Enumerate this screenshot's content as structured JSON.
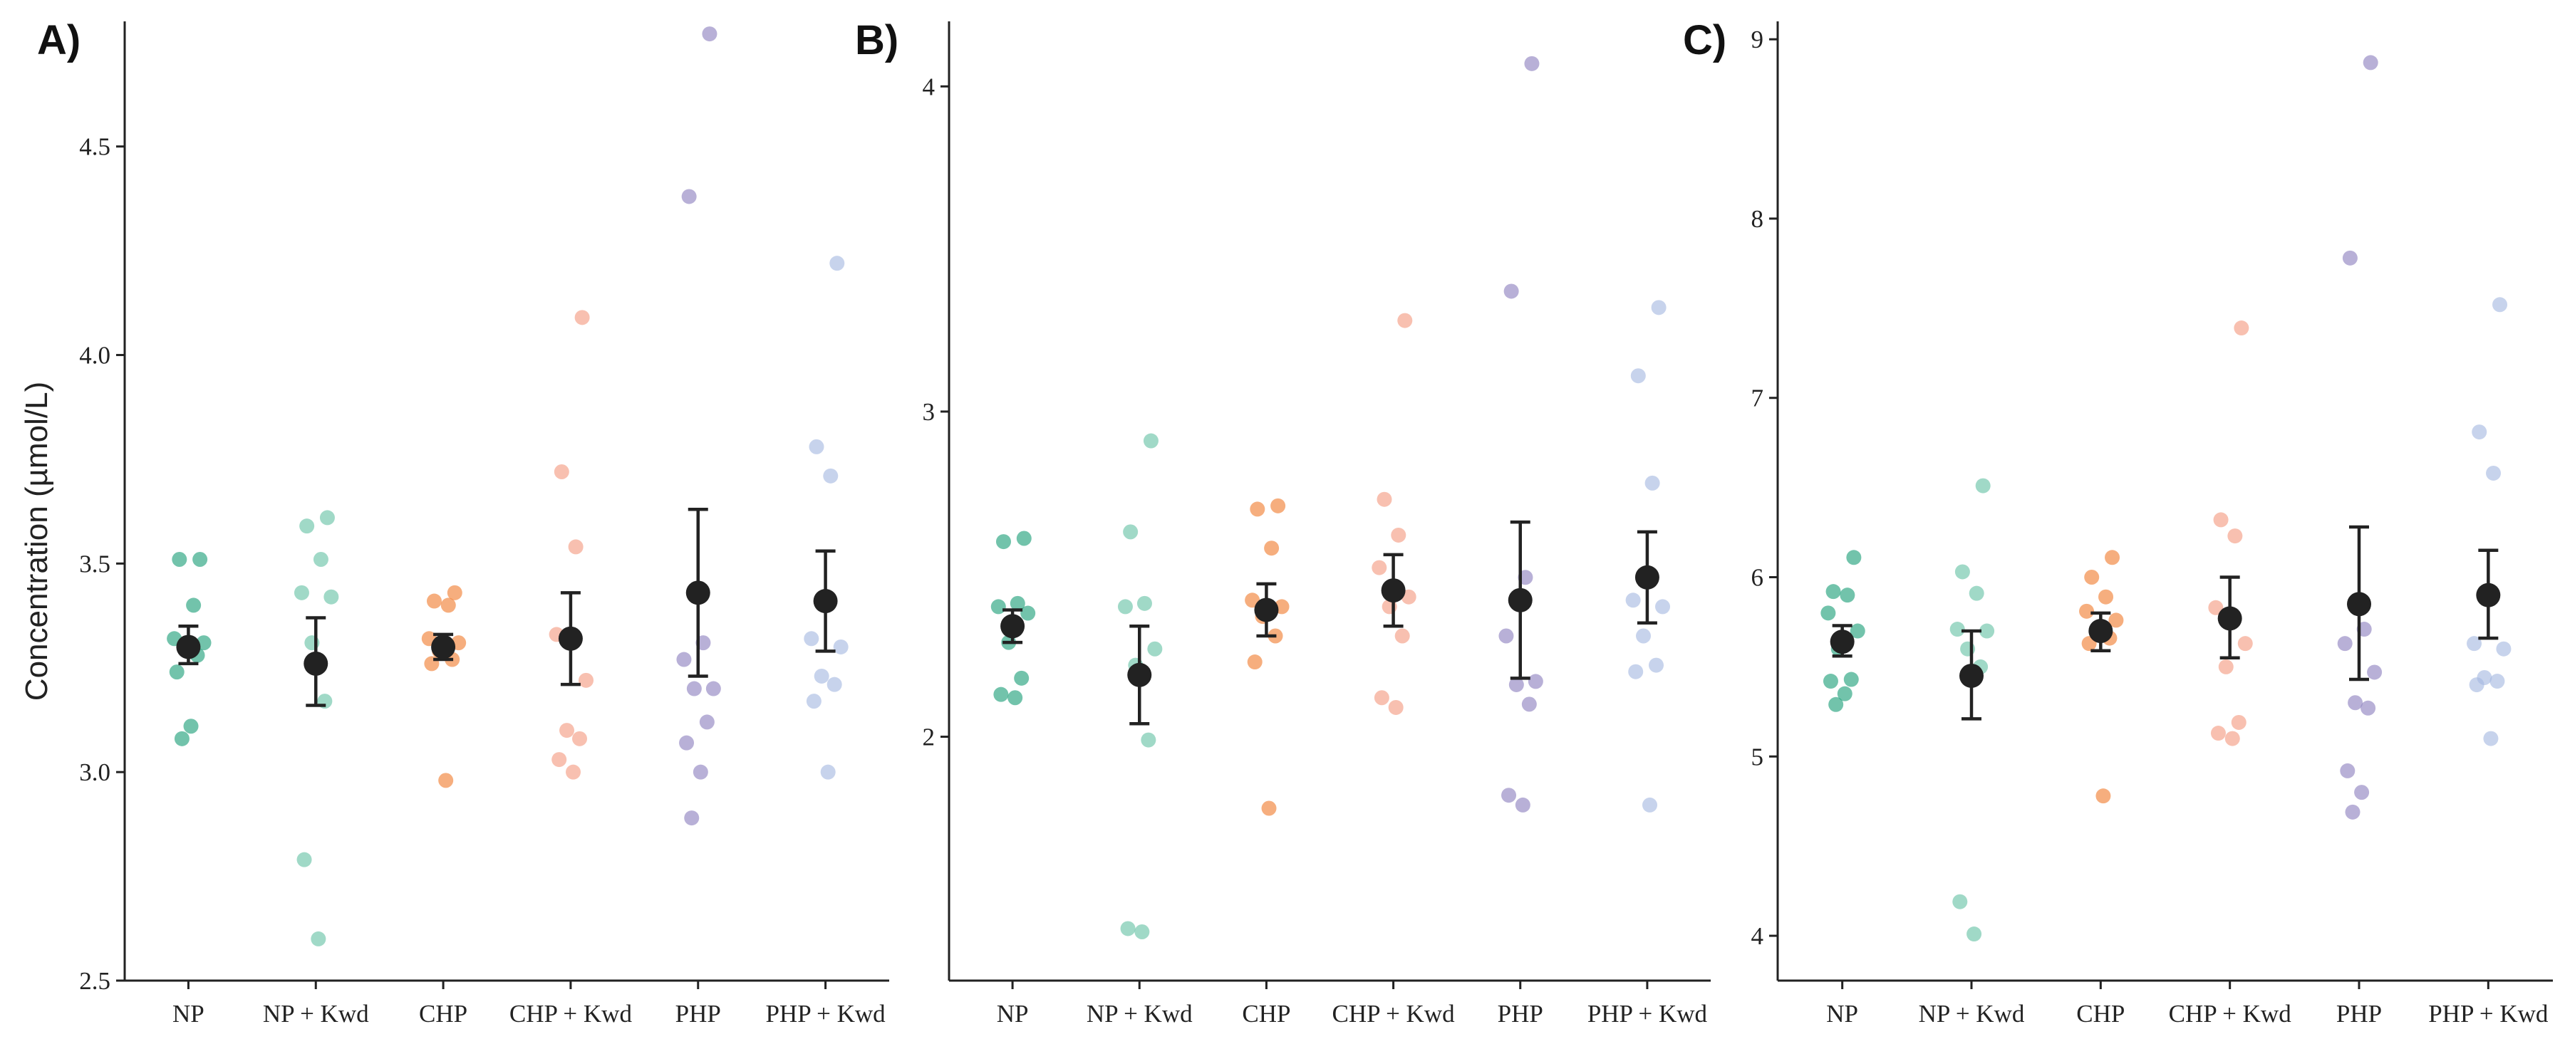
{
  "y_axis_title": "Concentration (µmol/L)",
  "colors": {
    "NP": "#1b9e77",
    "NP + Kwd": "#66c2a5",
    "CHP": "#f07d2e",
    "CHP + Kwd": "#f4997f",
    "PHP": "#8d7fbf",
    "PHP + Kwd": "#a5b8e0",
    "mean": "#222222"
  },
  "chart_data": [
    {
      "type": "scatter",
      "panel_label": "A)",
      "categories": [
        "NP",
        "NP + Kwd",
        "CHP",
        "CHP + Kwd",
        "PHP",
        "PHP + Kwd"
      ],
      "ylim": [
        2.5,
        4.8
      ],
      "yticks": [
        "2.5",
        "3.0",
        "3.5",
        "4.0",
        "4.5"
      ],
      "ylabel": "Concentration (µmol/L)",
      "points": [
        [
          3.51,
          3.51,
          3.4,
          3.32,
          3.31,
          3.3,
          3.28,
          3.24,
          3.11,
          3.08
        ],
        [
          3.61,
          3.59,
          3.51,
          3.43,
          3.42,
          3.31,
          3.17,
          2.79,
          2.6
        ],
        [
          3.43,
          3.41,
          3.4,
          3.32,
          3.31,
          3.29,
          3.27,
          3.26,
          2.98
        ],
        [
          4.09,
          3.72,
          3.54,
          3.33,
          3.22,
          3.1,
          3.08,
          3.03,
          3.0
        ],
        [
          4.77,
          4.38,
          3.31,
          3.27,
          3.2,
          3.2,
          3.12,
          3.07,
          3.0,
          2.89
        ],
        [
          4.22,
          3.78,
          3.71,
          3.32,
          3.3,
          3.23,
          3.21,
          3.17,
          3.0
        ]
      ],
      "means": [
        3.3,
        3.26,
        3.3,
        3.32,
        3.43,
        3.41
      ],
      "err_low": [
        3.26,
        3.16,
        3.27,
        3.21,
        3.23,
        3.29
      ],
      "err_high": [
        3.35,
        3.37,
        3.33,
        3.43,
        3.63,
        3.53
      ]
    },
    {
      "type": "scatter",
      "panel_label": "B)",
      "categories": [
        "NP",
        "NP + Kwd",
        "CHP",
        "CHP + Kwd",
        "PHP",
        "PHP + Kwd"
      ],
      "ylim": [
        1.25,
        4.2
      ],
      "yticks": [
        "2",
        "3",
        "4"
      ],
      "ylabel": "",
      "points": [
        [
          2.61,
          2.6,
          2.41,
          2.4,
          2.38,
          2.29,
          2.18,
          2.13,
          2.12
        ],
        [
          2.91,
          2.63,
          2.41,
          2.4,
          2.27,
          2.22,
          1.99,
          1.41,
          1.4
        ],
        [
          2.71,
          2.7,
          2.58,
          2.42,
          2.4,
          2.37,
          2.31,
          2.23,
          1.78
        ],
        [
          3.28,
          2.73,
          2.62,
          2.52,
          2.43,
          2.4,
          2.31,
          2.12,
          2.09
        ],
        [
          4.07,
          3.37,
          2.49,
          2.31,
          2.17,
          2.16,
          2.1,
          1.82,
          1.79
        ],
        [
          3.32,
          3.11,
          2.78,
          2.42,
          2.4,
          2.31,
          2.22,
          2.2,
          1.79
        ]
      ],
      "means": [
        2.34,
        2.19,
        2.39,
        2.45,
        2.42,
        2.49
      ],
      "err_low": [
        2.29,
        2.04,
        2.31,
        2.34,
        2.18,
        2.35
      ],
      "err_high": [
        2.39,
        2.34,
        2.47,
        2.56,
        2.66,
        2.63
      ]
    },
    {
      "type": "scatter",
      "panel_label": "C)",
      "categories": [
        "NP",
        "NP + Kwd",
        "CHP",
        "CHP + Kwd",
        "PHP",
        "PHP + Kwd"
      ],
      "ylim": [
        3.75,
        9.1
      ],
      "yticks": [
        "4",
        "5",
        "6",
        "7",
        "8",
        "9"
      ],
      "ylabel": "",
      "points": [
        [
          6.11,
          5.92,
          5.9,
          5.8,
          5.7,
          5.6,
          5.43,
          5.42,
          5.35,
          5.29
        ],
        [
          6.51,
          6.03,
          5.91,
          5.71,
          5.7,
          5.6,
          5.5,
          4.19,
          4.01
        ],
        [
          6.11,
          6.0,
          5.89,
          5.81,
          5.76,
          5.7,
          5.66,
          5.63,
          4.78
        ],
        [
          7.39,
          6.32,
          6.23,
          5.83,
          5.63,
          5.5,
          5.19,
          5.13,
          5.1
        ],
        [
          8.87,
          7.78,
          5.71,
          5.63,
          5.47,
          5.3,
          5.27,
          4.92,
          4.8,
          4.69
        ],
        [
          7.52,
          6.81,
          6.58,
          5.63,
          5.6,
          5.44,
          5.42,
          5.4,
          5.1
        ]
      ],
      "means": [
        5.64,
        5.45,
        5.7,
        5.77,
        5.85,
        5.9
      ],
      "err_low": [
        5.56,
        5.21,
        5.59,
        5.55,
        5.43,
        5.66
      ],
      "err_high": [
        5.73,
        5.7,
        5.8,
        6.0,
        6.28,
        6.15
      ]
    }
  ]
}
